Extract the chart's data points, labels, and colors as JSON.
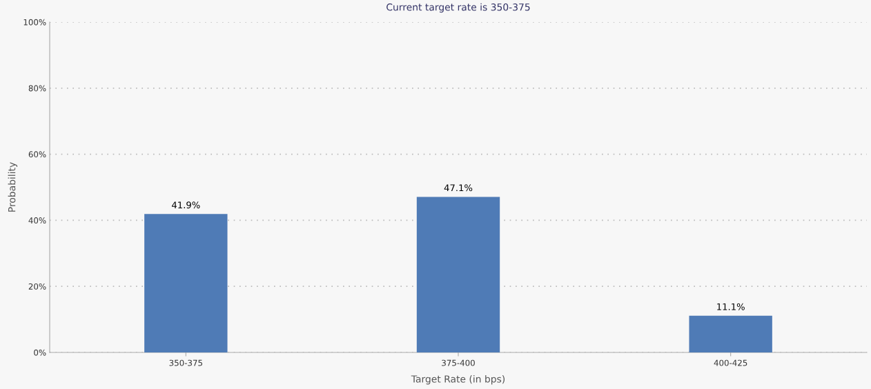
{
  "chart_data": {
    "type": "bar",
    "title": "Current target rate is 350-375",
    "xlabel": "Target Rate (in bps)",
    "ylabel": "Probability",
    "categories": [
      "350-375",
      "375-400",
      "400-425"
    ],
    "values": [
      41.9,
      47.1,
      11.1
    ],
    "value_labels": [
      "41.9%",
      "47.1%",
      "11.1%"
    ],
    "color": "#4f7bb6",
    "ylim": [
      0,
      100
    ],
    "yticks": [
      {
        "value": 0,
        "label": "0%"
      },
      {
        "value": 20,
        "label": "20%"
      },
      {
        "value": 40,
        "label": "40%"
      },
      {
        "value": 60,
        "label": "60%"
      },
      {
        "value": 80,
        "label": "80%"
      },
      {
        "value": 100,
        "label": "100%"
      }
    ],
    "grid": "y",
    "legend": false
  }
}
